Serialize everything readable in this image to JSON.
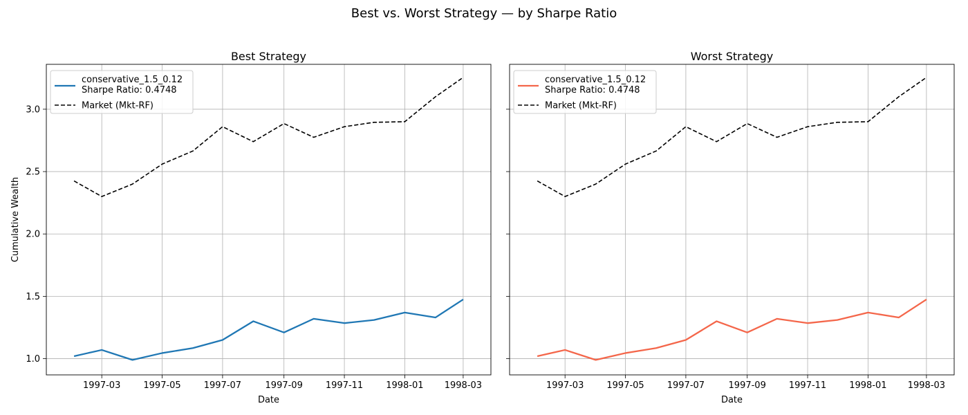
{
  "figure": {
    "title": "Best vs. Worst Strategy — by Sharpe Ratio"
  },
  "chart_data": [
    {
      "type": "line",
      "title": "Best Strategy",
      "xlabel": "Date",
      "ylabel": "Cumulative Wealth",
      "x": [
        "1997-02-01",
        "1997-03-01",
        "1997-04-01",
        "1997-05-01",
        "1997-06-01",
        "1997-07-01",
        "1997-08-01",
        "1997-09-01",
        "1997-10-01",
        "1997-11-01",
        "1997-12-01",
        "1998-01-01",
        "1998-02-01",
        "1998-03-01"
      ],
      "xticks": [
        "1997-03",
        "1997-05",
        "1997-07",
        "1997-09",
        "1997-11",
        "1998-01",
        "1998-03"
      ],
      "yticks": [
        "1.0",
        "1.5",
        "2.0",
        "2.5",
        "3.0"
      ],
      "ylim": [
        0.87,
        3.36
      ],
      "grid": true,
      "legend_position": "top-left",
      "series": [
        {
          "name": "conservative_1.5_0.12",
          "legend_line2": "Sharpe Ratio: 0.4748",
          "color": "#1f77b4",
          "style": "solid",
          "values": [
            1.02,
            1.07,
            0.99,
            1.045,
            1.085,
            1.15,
            1.3,
            1.21,
            1.32,
            1.285,
            1.31,
            1.37,
            1.33,
            1.475
          ]
        },
        {
          "name": "Market (Mkt-RF)",
          "color": "#000000",
          "style": "dashed",
          "values": [
            2.425,
            2.3,
            2.4,
            2.56,
            2.665,
            2.86,
            2.74,
            2.885,
            2.775,
            2.86,
            2.895,
            2.9,
            3.1,
            3.255
          ]
        }
      ]
    },
    {
      "type": "line",
      "title": "Worst Strategy",
      "xlabel": "Date",
      "ylabel": "",
      "x": [
        "1997-02-01",
        "1997-03-01",
        "1997-04-01",
        "1997-05-01",
        "1997-06-01",
        "1997-07-01",
        "1997-08-01",
        "1997-09-01",
        "1997-10-01",
        "1997-11-01",
        "1997-12-01",
        "1998-01-01",
        "1998-02-01",
        "1998-03-01"
      ],
      "xticks": [
        "1997-03",
        "1997-05",
        "1997-07",
        "1997-09",
        "1997-11",
        "1998-01",
        "1998-03"
      ],
      "yticks": [],
      "ylim": [
        0.87,
        3.36
      ],
      "grid": true,
      "legend_position": "top-left",
      "series": [
        {
          "name": "conservative_1.5_0.12",
          "legend_line2": "Sharpe Ratio: 0.4748",
          "color": "#f4664a",
          "style": "solid",
          "values": [
            1.02,
            1.07,
            0.99,
            1.045,
            1.085,
            1.15,
            1.3,
            1.21,
            1.32,
            1.285,
            1.31,
            1.37,
            1.33,
            1.475
          ]
        },
        {
          "name": "Market (Mkt-RF)",
          "color": "#000000",
          "style": "dashed",
          "values": [
            2.425,
            2.3,
            2.4,
            2.56,
            2.665,
            2.86,
            2.74,
            2.885,
            2.775,
            2.86,
            2.895,
            2.9,
            3.1,
            3.255
          ]
        }
      ]
    }
  ]
}
